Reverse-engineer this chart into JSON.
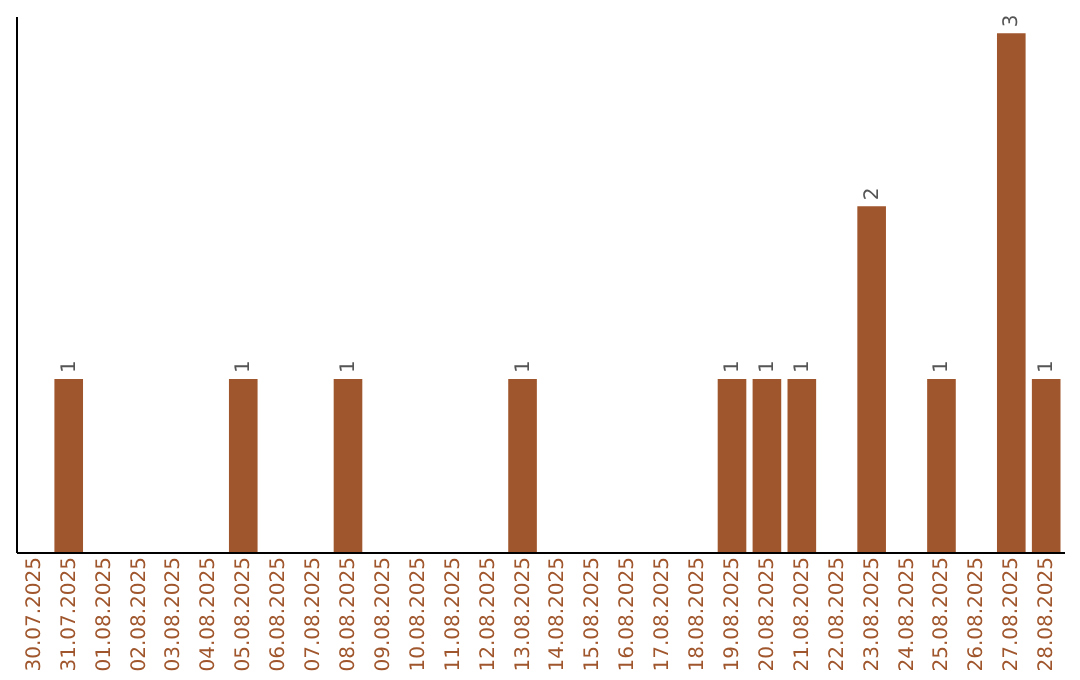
{
  "chart_data": {
    "type": "bar",
    "categories": [
      "30.07.2025",
      "31.07.2025",
      "01.08.2025",
      "02.08.2025",
      "03.08.2025",
      "04.08.2025",
      "05.08.2025",
      "06.08.2025",
      "07.08.2025",
      "08.08.2025",
      "09.08.2025",
      "10.08.2025",
      "11.08.2025",
      "12.08.2025",
      "13.08.2025",
      "14.08.2025",
      "15.08.2025",
      "16.08.2025",
      "17.08.2025",
      "18.08.2025",
      "19.08.2025",
      "20.08.2025",
      "21.08.2025",
      "22.08.2025",
      "23.08.2025",
      "24.08.2025",
      "25.08.2025",
      "26.08.2025",
      "27.08.2025",
      "28.08.2025"
    ],
    "values": [
      0,
      1,
      0,
      0,
      0,
      0,
      1,
      0,
      0,
      1,
      0,
      0,
      0,
      0,
      1,
      0,
      0,
      0,
      0,
      0,
      1,
      1,
      1,
      0,
      2,
      0,
      1,
      0,
      3,
      1
    ],
    "value_labels": [
      null,
      "1",
      null,
      null,
      null,
      null,
      "1",
      null,
      null,
      "1",
      null,
      null,
      null,
      null,
      "1",
      null,
      null,
      null,
      null,
      null,
      "1",
      "1",
      "1",
      null,
      "2",
      null,
      "1",
      null,
      "3",
      "1"
    ],
    "color": "#a0562c",
    "ylim": [
      0,
      3.1
    ],
    "tick_labels": "x"
  }
}
